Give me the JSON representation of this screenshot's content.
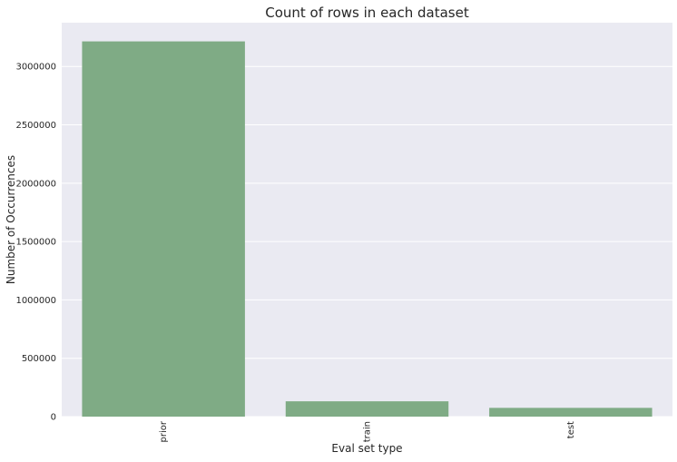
{
  "chart_data": {
    "type": "bar",
    "title": "Count of rows in each dataset",
    "xlabel": "Eval set type",
    "ylabel": "Number of Occurrences",
    "categories": [
      "prior",
      "train",
      "test"
    ],
    "values": [
      3214874,
      131209,
      75000
    ],
    "ylim": [
      0,
      3375000
    ],
    "yticks": [
      0,
      500000,
      1000000,
      1500000,
      2000000,
      2500000,
      3000000
    ],
    "ytick_labels": [
      "0",
      "500000",
      "1000000",
      "1500000",
      "2000000",
      "2500000",
      "3000000"
    ],
    "bar_color": "#7fab85",
    "plot_bg": "#eaeaf2",
    "grid": true,
    "grid_color": "#ffffff",
    "xtick_rotation": "vertical"
  }
}
